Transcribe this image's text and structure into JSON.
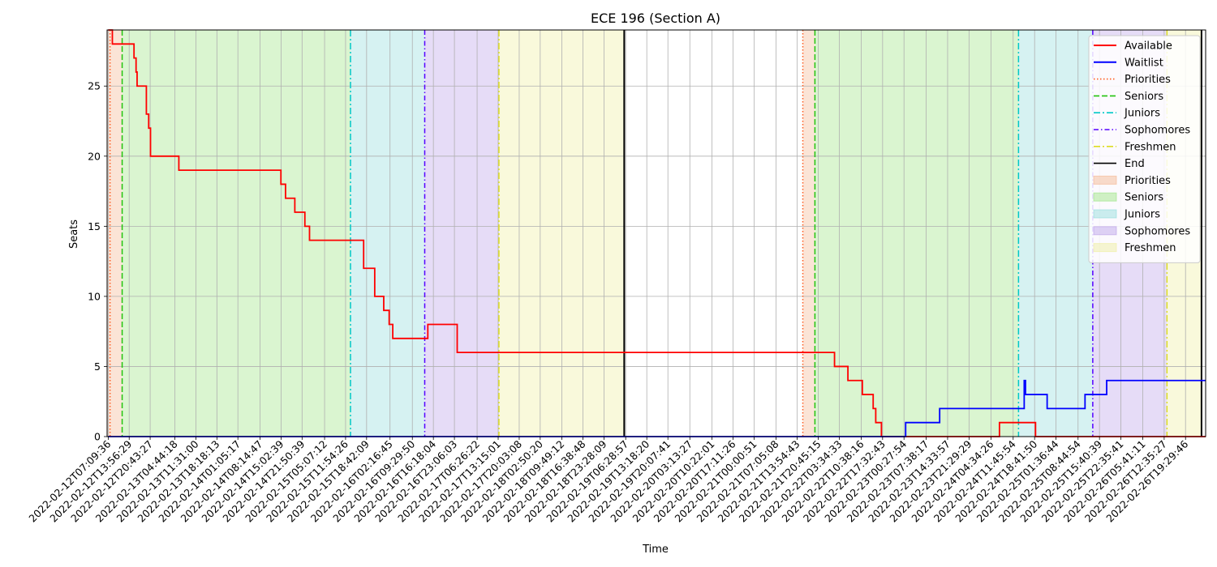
{
  "chart_data": {
    "type": "line",
    "title": "ECE 196 (Section A)",
    "xlabel": "Time",
    "ylabel": "Seats",
    "x_axis": "time",
    "xlim": [
      "2022-02-12T06:48",
      "2022-02-27T02:00"
    ],
    "ylim": [
      0,
      29
    ],
    "y_ticks": [
      0,
      5,
      10,
      15,
      20,
      25
    ],
    "x_tick_labels": [
      "2022-02-12T07:09:36",
      "2022-02-12T13:56:29",
      "2022-02-12T20:43:27",
      "2022-02-13T04:44:18",
      "2022-02-13T11:31:00",
      "2022-02-13T18:18:13",
      "2022-02-14T01:05:17",
      "2022-02-14T08:14:47",
      "2022-02-14T15:02:39",
      "2022-02-14T21:50:39",
      "2022-02-15T05:07:12",
      "2022-02-15T11:54:26",
      "2022-02-15T18:42:09",
      "2022-02-16T02:16:45",
      "2022-02-16T09:29:50",
      "2022-02-16T16:18:04",
      "2022-02-16T23:06:03",
      "2022-02-17T06:26:22",
      "2022-02-17T13:15:01",
      "2022-02-17T20:03:08",
      "2022-02-18T02:50:20",
      "2022-02-18T09:49:12",
      "2022-02-18T16:38:48",
      "2022-02-18T23:28:09",
      "2022-02-19T06:28:57",
      "2022-02-19T13:18:20",
      "2022-02-19T20:07:41",
      "2022-02-20T03:13:27",
      "2022-02-20T10:22:01",
      "2022-02-20T17:11:26",
      "2022-02-21T00:00:51",
      "2022-02-21T07:05:08",
      "2022-02-21T13:54:43",
      "2022-02-21T20:45:15",
      "2022-02-22T03:34:33",
      "2022-02-22T10:38:16",
      "2022-02-22T17:32:43",
      "2022-02-23T00:27:54",
      "2022-02-23T07:38:17",
      "2022-02-23T14:33:57",
      "2022-02-23T21:29:29",
      "2022-02-24T04:34:26",
      "2022-02-24T11:45:54",
      "2022-02-24T18:41:50",
      "2022-02-25T01:36:44",
      "2022-02-25T08:44:54",
      "2022-02-25T15:40:39",
      "2022-02-25T22:35:41",
      "2022-02-26T05:41:11",
      "2022-02-26T12:35:27",
      "2022-02-26T19:29:46"
    ],
    "grid": true,
    "legend_position": "top-right",
    "series": [
      {
        "name": "Available",
        "color": "#ff0000",
        "style": "step",
        "points": [
          [
            "2022-02-12T07:09:36",
            29
          ],
          [
            "2022-02-12T08:30",
            28
          ],
          [
            "2022-02-12T15:30",
            27
          ],
          [
            "2022-02-12T16:10",
            26
          ],
          [
            "2022-02-12T16:30",
            25
          ],
          [
            "2022-02-12T19:30",
            23
          ],
          [
            "2022-02-12T20:15",
            22
          ],
          [
            "2022-02-12T20:50",
            20
          ],
          [
            "2022-02-13T06:00",
            19
          ],
          [
            "2022-02-14T15:00",
            18
          ],
          [
            "2022-02-14T16:30",
            17
          ],
          [
            "2022-02-14T19:30",
            16
          ],
          [
            "2022-02-14T22:45",
            15
          ],
          [
            "2022-02-15T00:15",
            14
          ],
          [
            "2022-02-15T17:45",
            12
          ],
          [
            "2022-02-15T21:20",
            10
          ],
          [
            "2022-02-16T00:15",
            9
          ],
          [
            "2022-02-16T02:00",
            8
          ],
          [
            "2022-02-16T03:10",
            7
          ],
          [
            "2022-02-16T14:30",
            8
          ],
          [
            "2022-02-17T00:00",
            6
          ],
          [
            "2022-02-22T02:00",
            5
          ],
          [
            "2022-02-22T06:20",
            4
          ],
          [
            "2022-02-22T11:00",
            3
          ],
          [
            "2022-02-22T14:30",
            2
          ],
          [
            "2022-02-22T15:20",
            1
          ],
          [
            "2022-02-22T17:10",
            0
          ],
          [
            "2022-02-24T07:20",
            1
          ],
          [
            "2022-02-24T19:00",
            0
          ],
          [
            "2022-02-27T02:00",
            0
          ]
        ]
      },
      {
        "name": "Waitlist",
        "color": "#0000ff",
        "style": "step",
        "points": [
          [
            "2022-02-12T07:09:36",
            0
          ],
          [
            "2022-02-23T01:00",
            1
          ],
          [
            "2022-02-23T12:00",
            2
          ],
          [
            "2022-02-24T15:20",
            4
          ],
          [
            "2022-02-24T15:45",
            3
          ],
          [
            "2022-02-24T22:45",
            2
          ],
          [
            "2022-02-25T11:00",
            3
          ],
          [
            "2022-02-25T18:00",
            4
          ],
          [
            "2022-02-27T02:00",
            4
          ]
        ]
      }
    ],
    "markers": [
      {
        "name": "Priorities",
        "color": "#ff5a1e",
        "dash": "1.5,2.5",
        "times": [
          "2022-02-12T07:45",
          "2022-02-21T15:45"
        ]
      },
      {
        "name": "Seniors",
        "color": "#22c30d",
        "dash": "7,3",
        "times": [
          "2022-02-12T11:40",
          "2022-02-21T19:40"
        ]
      },
      {
        "name": "Juniors",
        "color": "#00c8c8",
        "dash": "8,3,2,3",
        "times": [
          "2022-02-15T13:30",
          "2022-02-24T13:30"
        ]
      },
      {
        "name": "Sophomores",
        "color": "#5500ff",
        "dash": "6,3,1.5,3",
        "times": [
          "2022-02-16T13:30",
          "2022-02-25T13:30"
        ]
      },
      {
        "name": "Freshmen",
        "color": "#dddd22",
        "dash": "8,3,2,3",
        "times": [
          "2022-02-17T13:30",
          "2022-02-26T13:30"
        ]
      },
      {
        "name": "End",
        "color": "#000000",
        "dash": "",
        "times": [
          "2022-02-19T06:00",
          "2022-02-27T00:40"
        ]
      }
    ],
    "shaded_periods": [
      {
        "name": "Priorities",
        "color": "#f5b48c",
        "ranges": [
          [
            "2022-02-12T06:48",
            "2022-02-12T11:40"
          ],
          [
            "2022-02-21T15:45",
            "2022-02-21T19:40"
          ]
        ]
      },
      {
        "name": "Seniors",
        "color": "#98e47e",
        "ranges": [
          [
            "2022-02-12T11:40",
            "2022-02-15T13:30"
          ],
          [
            "2022-02-21T19:40",
            "2022-02-24T13:30"
          ]
        ]
      },
      {
        "name": "Juniors",
        "color": "#8edcdc",
        "ranges": [
          [
            "2022-02-15T13:30",
            "2022-02-16T13:30"
          ],
          [
            "2022-02-24T13:30",
            "2022-02-25T13:30"
          ]
        ]
      },
      {
        "name": "Sophomores",
        "color": "#b99de8",
        "ranges": [
          [
            "2022-02-16T13:30",
            "2022-02-17T13:30"
          ],
          [
            "2022-02-25T13:30",
            "2022-02-26T13:30"
          ]
        ]
      },
      {
        "name": "Freshmen",
        "color": "#eeee9c",
        "ranges": [
          [
            "2022-02-17T13:30",
            "2022-02-19T06:00"
          ],
          [
            "2022-02-26T13:30",
            "2022-02-27T00:40"
          ]
        ]
      }
    ]
  }
}
